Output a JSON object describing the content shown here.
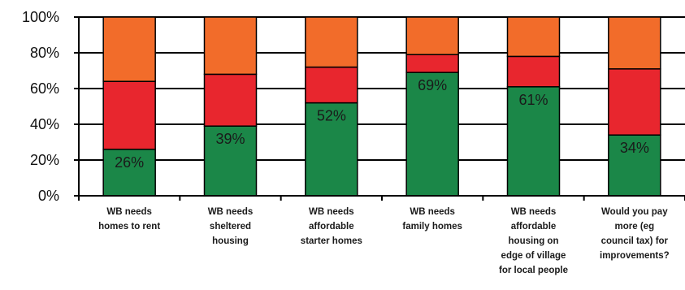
{
  "chart_data": {
    "type": "bar",
    "stacked": true,
    "percent": true,
    "categories": [
      "WB needs\nhomes to rent",
      "WB needs\nsheltered\nhousing",
      "WB needs\naffordable\nstarter homes",
      "WB needs\nfamily homes",
      "WB needs\naffordable\nhousing on\nedge of village\nfor local people",
      "Would you pay\nmore (eg\ncouncil tax) for\nimprovements?"
    ],
    "series": [
      {
        "values": [
          26,
          39,
          52,
          69,
          61,
          34
        ],
        "color": "#1b8748"
      },
      {
        "values": [
          38,
          29,
          20,
          10,
          17,
          37
        ],
        "color": "#e8262e"
      },
      {
        "values": [
          36,
          32,
          28,
          21,
          22,
          29
        ],
        "color": "#f26c2a"
      }
    ],
    "data_labels": [
      "26%",
      "39%",
      "52%",
      "69%",
      "61%",
      "34%"
    ],
    "y_ticks": [
      "0%",
      "20%",
      "40%",
      "60%",
      "80%",
      "100%"
    ],
    "ylim": [
      0,
      100
    ],
    "grid": true,
    "legend": "none"
  }
}
